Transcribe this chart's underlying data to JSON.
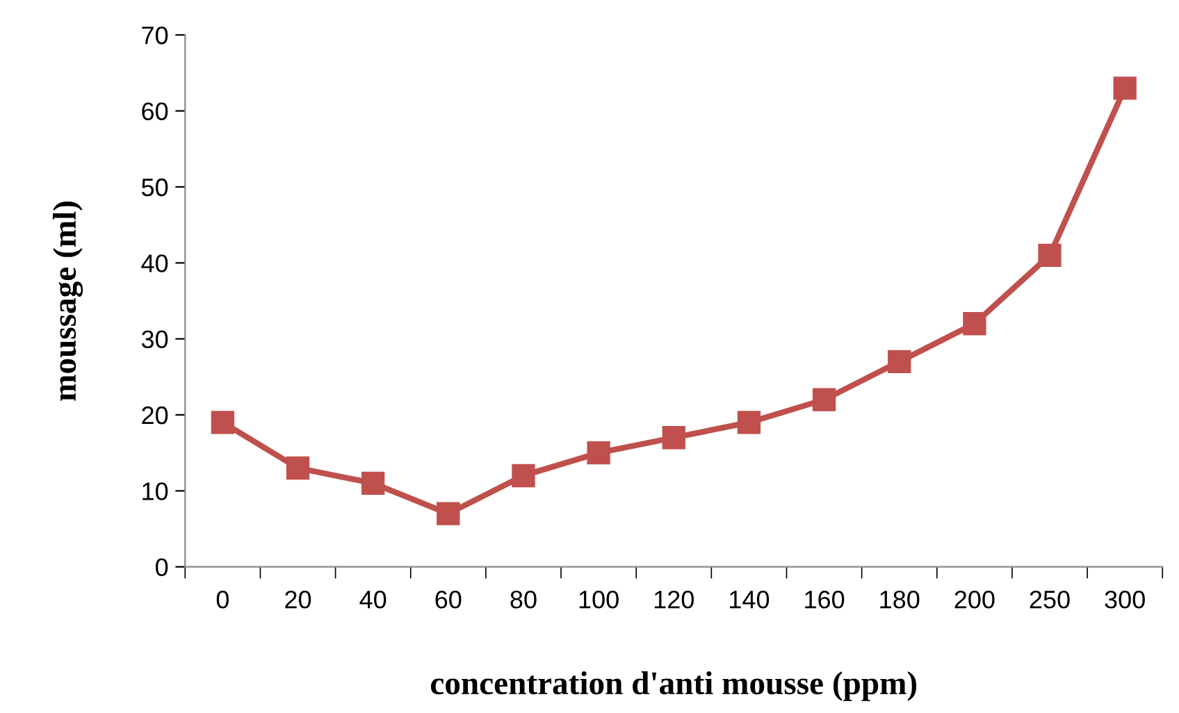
{
  "chart_data": {
    "type": "line",
    "xlabel": "concentration d'anti mousse (ppm)",
    "ylabel": "moussage (ml)",
    "categories": [
      "0",
      "20",
      "40",
      "60",
      "80",
      "100",
      "120",
      "140",
      "160",
      "180",
      "200",
      "250",
      "300"
    ],
    "series": [
      {
        "color": "#c0504d",
        "values": [
          19,
          13,
          11,
          7,
          12,
          15,
          17,
          19,
          22,
          27,
          32,
          41,
          63
        ]
      }
    ],
    "ylim": [
      0,
      70
    ],
    "yticks": [
      0,
      10,
      20,
      30,
      40,
      50,
      60,
      70
    ],
    "grid": false,
    "legend": false,
    "marker": "square",
    "line_style": "solid"
  }
}
